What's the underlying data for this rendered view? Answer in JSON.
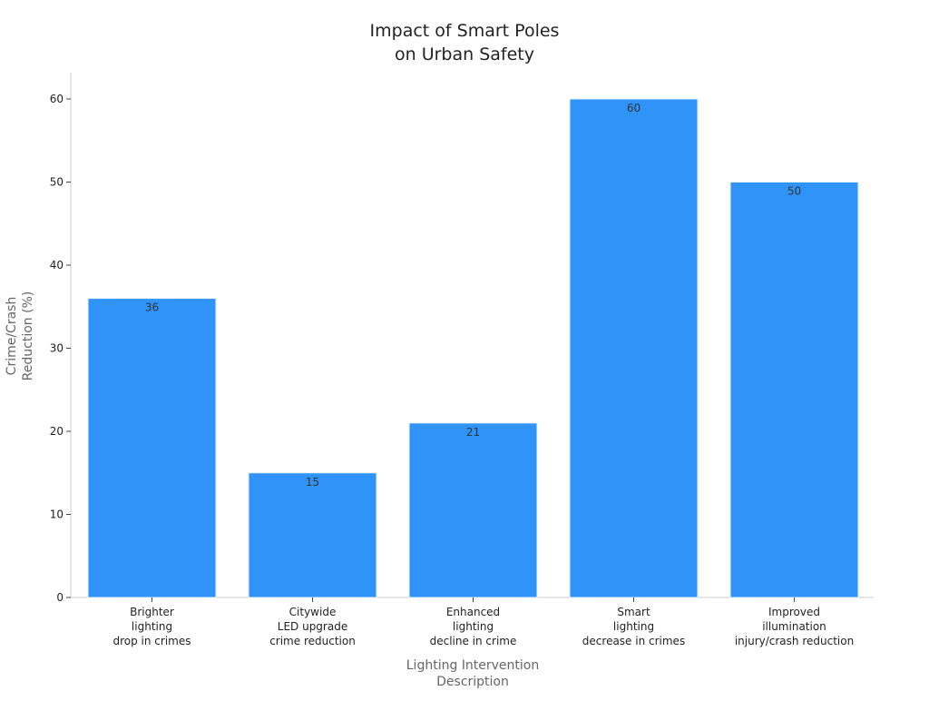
{
  "chart_data": {
    "type": "bar",
    "title": [
      "Impact of Smart Poles",
      "on Urban Safety"
    ],
    "xlabel": [
      "Lighting Intervention",
      "Description"
    ],
    "ylabel": [
      "Crime/Crash",
      "Reduction (%)"
    ],
    "categories": [
      [
        "Brighter",
        "lighting",
        "drop in crimes"
      ],
      [
        "Citywide",
        "LED upgrade",
        "crime reduction"
      ],
      [
        "Enhanced",
        "lighting",
        "decline in crime"
      ],
      [
        "Smart",
        "lighting",
        "decrease in crimes"
      ],
      [
        "Improved",
        "illumination",
        "injury/crash reduction"
      ]
    ],
    "values": [
      36,
      15,
      21,
      60,
      50
    ],
    "ylim": [
      0,
      63
    ],
    "yticks": [
      0,
      10,
      20,
      30,
      40,
      50,
      60
    ],
    "bar_color": "#2f93f7",
    "grid": false,
    "legend": "none"
  }
}
